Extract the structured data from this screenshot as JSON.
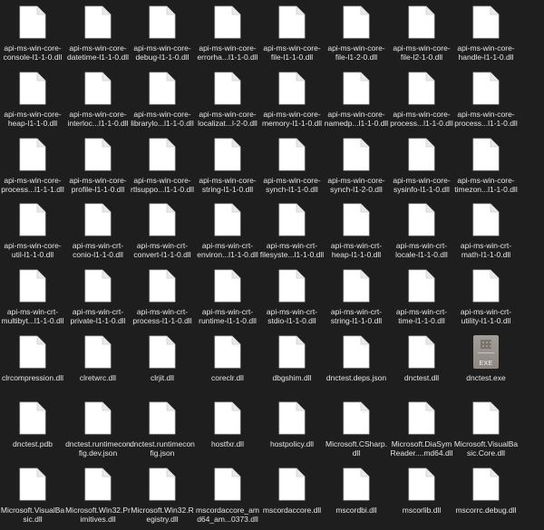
{
  "files": [
    {
      "label": "api-ms-win-core-console-l1-1-0.dll",
      "icon": "document-icon"
    },
    {
      "label": "api-ms-win-core-datetime-l1-1-0.dll",
      "icon": "document-icon"
    },
    {
      "label": "api-ms-win-core-debug-l1-1-0.dll",
      "icon": "document-icon"
    },
    {
      "label": "api-ms-win-core-errorha...l1-1-0.dll",
      "icon": "document-icon"
    },
    {
      "label": "api-ms-win-core-file-l1-1-0.dll",
      "icon": "document-icon"
    },
    {
      "label": "api-ms-win-core-file-l1-2-0.dll",
      "icon": "document-icon"
    },
    {
      "label": "api-ms-win-core-file-l2-1-0.dll",
      "icon": "document-icon"
    },
    {
      "label": "api-ms-win-core-handle-l1-1-0.dll",
      "icon": "document-icon"
    },
    {
      "label": "api-ms-win-core-heap-l1-1-0.dll",
      "icon": "document-icon"
    },
    {
      "label": "api-ms-win-core-interloc...l1-1-0.dll",
      "icon": "document-icon"
    },
    {
      "label": "api-ms-win-core-librarylo...l1-1-0.dll",
      "icon": "document-icon"
    },
    {
      "label": "api-ms-win-core-localizat...l-2-0.dll",
      "icon": "document-icon"
    },
    {
      "label": "api-ms-win-core-memory-l1-1-0.dll",
      "icon": "document-icon"
    },
    {
      "label": "api-ms-win-core-namedp...l1-1-0.dll",
      "icon": "document-icon"
    },
    {
      "label": "api-ms-win-core-process...l1-1-0.dll",
      "icon": "document-icon"
    },
    {
      "label": "api-ms-win-core-process...l1-1-0.dll",
      "icon": "document-icon"
    },
    {
      "label": "api-ms-win-core-process...l1-1-1.dll",
      "icon": "document-icon"
    },
    {
      "label": "api-ms-win-core-profile-l1-1-0.dll",
      "icon": "document-icon"
    },
    {
      "label": "api-ms-win-core-rtlsuppo...l1-1-0.dll",
      "icon": "document-icon"
    },
    {
      "label": "api-ms-win-core-string-l1-1-0.dll",
      "icon": "document-icon"
    },
    {
      "label": "api-ms-win-core-synch-l1-1-0.dll",
      "icon": "document-icon"
    },
    {
      "label": "api-ms-win-core-synch-l1-2-0.dll",
      "icon": "document-icon"
    },
    {
      "label": "api-ms-win-core-sysinfo-l1-1-0.dll",
      "icon": "document-icon"
    },
    {
      "label": "api-ms-win-core-timezon...l1-1-0.dll",
      "icon": "document-icon"
    },
    {
      "label": "api-ms-win-core-util-l1-1-0.dll",
      "icon": "document-icon"
    },
    {
      "label": "api-ms-win-crt-conio-l1-1-0.dll",
      "icon": "document-icon"
    },
    {
      "label": "api-ms-win-crt-convert-l1-1-0.dll",
      "icon": "document-icon"
    },
    {
      "label": "api-ms-win-crt-environ...l1-1-0.dll",
      "icon": "document-icon"
    },
    {
      "label": "api-ms-win-crt-filesyste...l1-1-0.dll",
      "icon": "document-icon"
    },
    {
      "label": "api-ms-win-crt-heap-l1-1-0.dll",
      "icon": "document-icon"
    },
    {
      "label": "api-ms-win-crt-locale-l1-1-0.dll",
      "icon": "document-icon"
    },
    {
      "label": "api-ms-win-crt-math-l1-1-0.dll",
      "icon": "document-icon"
    },
    {
      "label": "api-ms-win-crt-multibyt...l1-1-0.dll",
      "icon": "document-icon"
    },
    {
      "label": "api-ms-win-crt-private-l1-1-0.dll",
      "icon": "document-icon"
    },
    {
      "label": "api-ms-win-crt-process-l1-1-0.dll",
      "icon": "document-icon"
    },
    {
      "label": "api-ms-win-crt-runtime-l1-1-0.dll",
      "icon": "document-icon"
    },
    {
      "label": "api-ms-win-crt-stdio-l1-1-0.dll",
      "icon": "document-icon"
    },
    {
      "label": "api-ms-win-crt-string-l1-1-0.dll",
      "icon": "document-icon"
    },
    {
      "label": "api-ms-win-crt-time-l1-1-0.dll",
      "icon": "document-icon"
    },
    {
      "label": "api-ms-win-crt-utility-l1-1-0.dll",
      "icon": "document-icon"
    },
    {
      "label": "clrcompression.dll",
      "icon": "document-icon"
    },
    {
      "label": "clretwrc.dll",
      "icon": "document-icon"
    },
    {
      "label": "clrjit.dll",
      "icon": "document-icon"
    },
    {
      "label": "coreclr.dll",
      "icon": "document-icon"
    },
    {
      "label": "dbgshim.dll",
      "icon": "document-icon"
    },
    {
      "label": "dnctest.deps.json",
      "icon": "document-icon"
    },
    {
      "label": "dnctest.dll",
      "icon": "document-icon"
    },
    {
      "label": "dnctest.exe",
      "icon": "exe-icon"
    },
    {
      "label": "dnctest.pdb",
      "icon": "document-icon"
    },
    {
      "label": "dnctest.runtimeconfig.dev.json",
      "icon": "document-icon"
    },
    {
      "label": "dnctest.runtimeconfig.json",
      "icon": "document-icon"
    },
    {
      "label": "hostfxr.dll",
      "icon": "document-icon"
    },
    {
      "label": "hostpolicy.dll",
      "icon": "document-icon"
    },
    {
      "label": "Microsoft.CSharp.dll",
      "icon": "document-icon"
    },
    {
      "label": "Microsoft.DiaSymReader....md64.dll",
      "icon": "document-icon"
    },
    {
      "label": "Microsoft.VisualBasic.Core.dll",
      "icon": "document-icon"
    },
    {
      "label": "Microsoft.VisualBasic.dll",
      "icon": "document-icon"
    },
    {
      "label": "Microsoft.Win32.Primitives.dll",
      "icon": "document-icon"
    },
    {
      "label": "Microsoft.Win32.Registry.dll",
      "icon": "document-icon"
    },
    {
      "label": "mscordaccore_amd64_am...0373.dll",
      "icon": "document-icon"
    },
    {
      "label": "mscordaccore.dll",
      "icon": "document-icon"
    },
    {
      "label": "mscordbi.dll",
      "icon": "document-icon"
    },
    {
      "label": "mscorlib.dll",
      "icon": "document-icon"
    },
    {
      "label": "mscorrc.debug.dll",
      "icon": "document-icon"
    }
  ],
  "exe_icon": {
    "badge_text": "EXE"
  }
}
